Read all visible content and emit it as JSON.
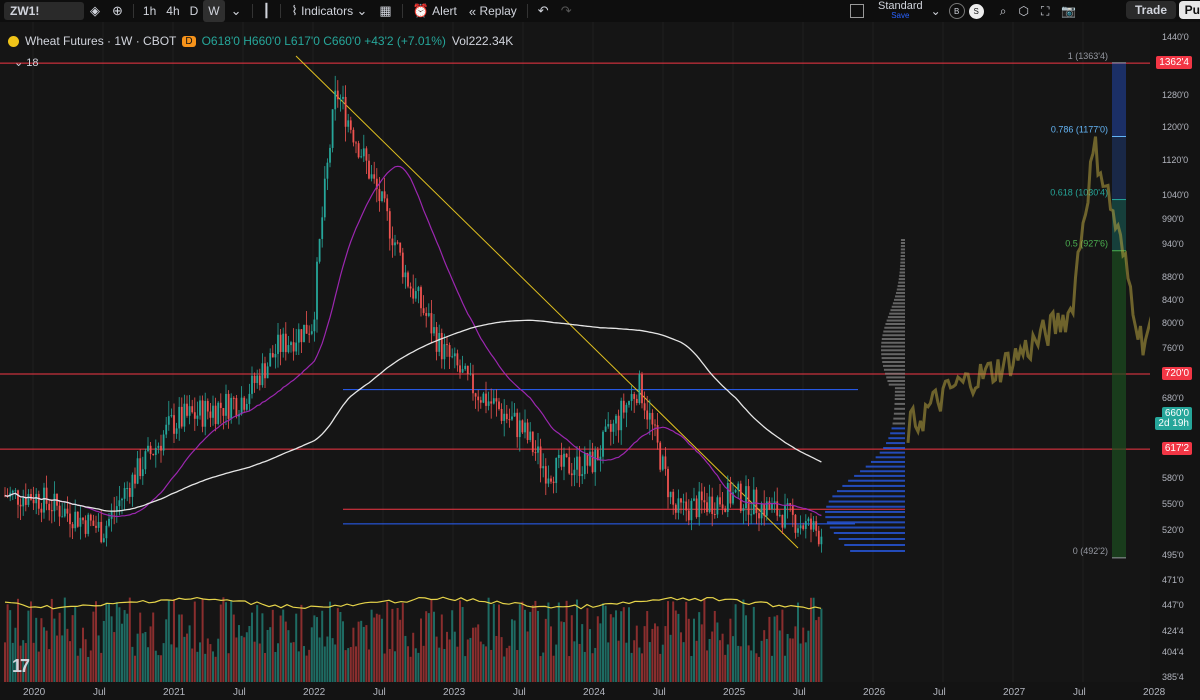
{
  "toolbar": {
    "symbol": "ZW1!",
    "timeframes": [
      "1h",
      "4h",
      "D",
      "W"
    ],
    "active_timeframe": "W",
    "indicators_label": "Indicators",
    "alert_label": "Alert",
    "replay_label": "Replay",
    "layout_name": "Standard",
    "layout_sub": "Save",
    "badge_b": "B",
    "badge_s": "S",
    "trade_label": "Trade",
    "publish_label": "Pu"
  },
  "legend": {
    "title": "Wheat Futures · 1W · CBOT",
    "badge": "D",
    "ohlc": "O618'0 H660'0 L617'0 C660'0 +43'2 (+7.01%)",
    "vol": "Vol222.34K",
    "indicator_count": "18"
  },
  "fib": {
    "levels": [
      {
        "label": "1 (1363'4)",
        "value": 1363.5,
        "color": "#9598a1"
      },
      {
        "label": "0.786 (1177'0)",
        "value": 1177,
        "color": "#64b5f6"
      },
      {
        "label": "0.618 (1030'4)",
        "value": 1030.5,
        "color": "#26a69a"
      },
      {
        "label": "0.5 (927'6)",
        "value": 927.75,
        "color": "#4caf50"
      },
      {
        "label": "0 (492'2)",
        "value": 492.25,
        "color": "#9598a1"
      }
    ]
  },
  "price_tags": [
    {
      "text": "1362'4",
      "value": 1362.5,
      "color": "#f23645"
    },
    {
      "text": "720'0",
      "value": 720,
      "color": "#f23645"
    },
    {
      "text": "660'0",
      "value": 660,
      "color": "#26a69a"
    },
    {
      "text": "2d 19h",
      "value": 648,
      "color": "#26a69a"
    },
    {
      "text": "617'2",
      "value": 617.25,
      "color": "#f23645"
    }
  ],
  "chart_data": {
    "type": "candlestick",
    "title": "Wheat Futures · 1W · CBOT",
    "y_axis_ticks": [
      "1440'0",
      "1360'0",
      "1280'0",
      "1200'0",
      "1120'0",
      "1040'0",
      "990'0",
      "940'0",
      "880'0",
      "840'0",
      "800'0",
      "760'0",
      "680'0",
      "620'0",
      "580'0",
      "550'0",
      "520'0",
      "495'0",
      "471'0",
      "447'0",
      "424'4",
      "404'4",
      "385'4"
    ],
    "x_axis_ticks": [
      "2020",
      "Jul",
      "2021",
      "Jul",
      "2022",
      "Jul",
      "2023",
      "Jul",
      "2024",
      "Jul",
      "2025",
      "Jul",
      "2026",
      "Jul",
      "2027",
      "Jul",
      "2028",
      "Jul",
      "20"
    ],
    "last_price": 660,
    "horizontal_levels": [
      {
        "value": 1362.5,
        "color": "#f23645"
      },
      {
        "value": 720,
        "color": "#f23645"
      },
      {
        "value": 617.25,
        "color": "#f23645"
      },
      {
        "value": 544,
        "color": "#f23645"
      },
      {
        "value": 694,
        "color": "#2962ff"
      },
      {
        "value": 527,
        "color": "#2962ff"
      }
    ],
    "price_path": [
      [
        "2020-01",
        560
      ],
      [
        "2020-07",
        520
      ],
      [
        "2020-10",
        590
      ],
      [
        "2021-01",
        650
      ],
      [
        "2021-07",
        680
      ],
      [
        "2021-10",
        760
      ],
      [
        "2022-01",
        800
      ],
      [
        "2022-03",
        1290
      ],
      [
        "2022-06",
        1080
      ],
      [
        "2022-09",
        880
      ],
      [
        "2022-12",
        760
      ],
      [
        "2023-03",
        690
      ],
      [
        "2023-07",
        640
      ],
      [
        "2023-09",
        590
      ],
      [
        "2024-01",
        600
      ],
      [
        "2024-05",
        700
      ],
      [
        "2024-08",
        540
      ],
      [
        "2025-01",
        560
      ],
      [
        "2025-05",
        540
      ],
      [
        "2025-08",
        520
      ],
      [
        "2025-12",
        505
      ],
      [
        "2026-03",
        660
      ]
    ],
    "projection_path": [
      [
        "2026-04",
        640
      ],
      [
        "2026-08",
        700
      ],
      [
        "2026-12",
        730
      ],
      [
        "2027-03",
        770
      ],
      [
        "2027-06",
        820
      ],
      [
        "2027-08",
        1150
      ],
      [
        "2027-10",
        960
      ],
      [
        "2027-12",
        770
      ],
      [
        "2028-02",
        830
      ]
    ]
  }
}
